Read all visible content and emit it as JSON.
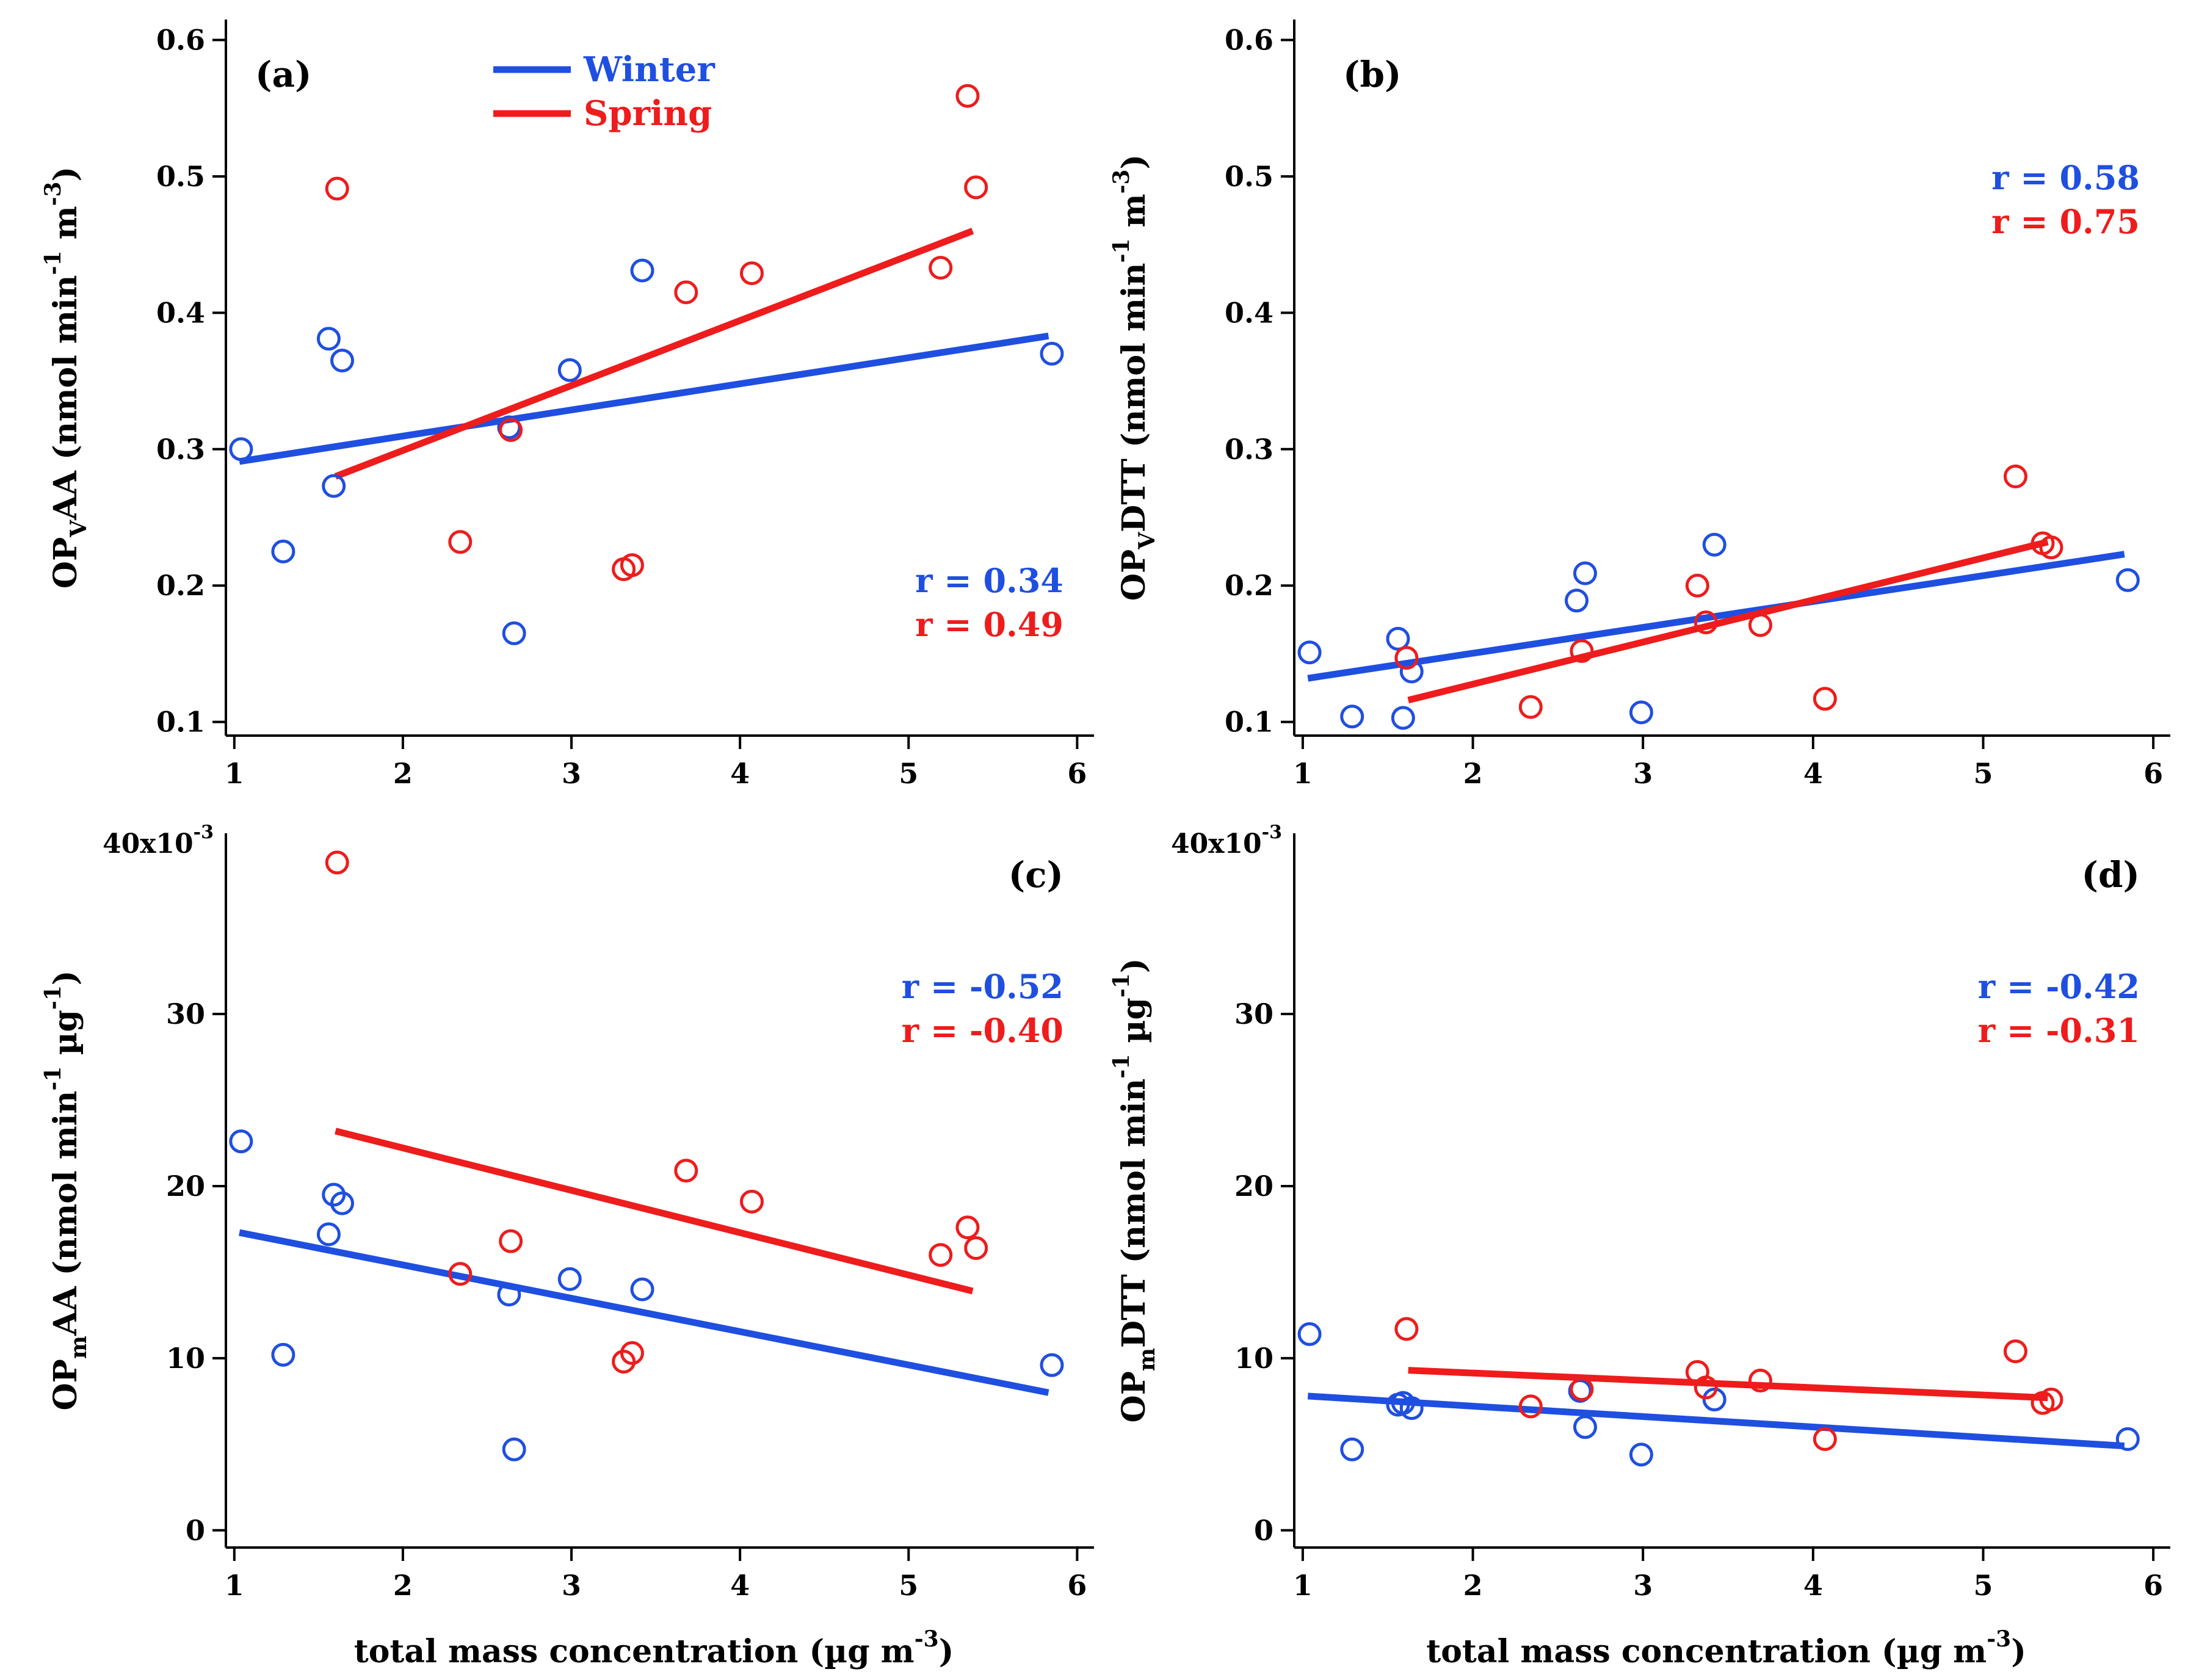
{
  "colors": {
    "winter": "#1f4fe0",
    "spring": "#ee1c1c",
    "axis": "#000000"
  },
  "chart_data": [
    {
      "type": "scatter",
      "panel": "(a)",
      "ylabel": {
        "main": "OP",
        "sub": "V",
        "rest": "AA (nmol min",
        "sup1": "-1",
        "mid": " m",
        "sup2": "-3",
        "end": ")"
      },
      "xlim": [
        0.95,
        6.1
      ],
      "ylim": [
        0.09,
        0.615
      ],
      "xticks": [
        1,
        2,
        3,
        4,
        5,
        6
      ],
      "xticklabels": [
        "1",
        "2",
        "3",
        "4",
        "5",
        "6"
      ],
      "yticks": [
        0.1,
        0.2,
        0.3,
        0.4,
        0.5,
        0.6
      ],
      "yticklabels": [
        "0.1",
        "0.2",
        "0.3",
        "0.4",
        "0.5",
        "0.6"
      ],
      "legend": [
        {
          "name": "Winter",
          "series": "winter"
        },
        {
          "name": "Spring",
          "series": "spring"
        }
      ],
      "r_labels": [
        {
          "text": "r = 0.34",
          "series": "winter"
        },
        {
          "text": "r = 0.49",
          "series": "spring"
        }
      ],
      "r_position": "bottom-right",
      "series": [
        {
          "name": "Winter",
          "key": "winter",
          "points": [
            [
              1.04,
              0.3
            ],
            [
              1.29,
              0.225
            ],
            [
              1.56,
              0.381
            ],
            [
              1.59,
              0.273
            ],
            [
              1.64,
              0.365
            ],
            [
              2.63,
              0.316
            ],
            [
              2.66,
              0.165
            ],
            [
              2.99,
              0.358
            ],
            [
              3.42,
              0.431
            ],
            [
              5.85,
              0.37
            ]
          ],
          "fit": [
            [
              1.03,
              0.291
            ],
            [
              5.83,
              0.383
            ]
          ]
        },
        {
          "name": "Spring",
          "key": "spring",
          "points": [
            [
              1.61,
              0.491
            ],
            [
              2.34,
              0.232
            ],
            [
              2.64,
              0.314
            ],
            [
              3.31,
              0.212
            ],
            [
              3.36,
              0.215
            ],
            [
              3.68,
              0.415
            ],
            [
              4.07,
              0.429
            ],
            [
              5.19,
              0.433
            ],
            [
              5.35,
              0.559
            ],
            [
              5.4,
              0.492
            ]
          ],
          "fit": [
            [
              1.6,
              0.28
            ],
            [
              5.38,
              0.46
            ]
          ]
        }
      ]
    },
    {
      "type": "scatter",
      "panel": "(b)",
      "ylabel": {
        "main": "OP",
        "sub": "V",
        "rest": "DTT (nmol min",
        "sup1": "-1",
        "mid": " m",
        "sup2": "-3",
        "end": ")"
      },
      "xlim": [
        0.95,
        6.1
      ],
      "ylim": [
        0.09,
        0.615
      ],
      "xticks": [
        1,
        2,
        3,
        4,
        5,
        6
      ],
      "xticklabels": [
        "1",
        "2",
        "3",
        "4",
        "5",
        "6"
      ],
      "yticks": [
        0.1,
        0.2,
        0.3,
        0.4,
        0.5,
        0.6
      ],
      "yticklabels": [
        "0.1",
        "0.2",
        "0.3",
        "0.4",
        "0.5",
        "0.6"
      ],
      "r_labels": [
        {
          "text": "r = 0.58",
          "series": "winter"
        },
        {
          "text": "r = 0.75",
          "series": "spring"
        }
      ],
      "r_position": "top-right",
      "series": [
        {
          "name": "Winter",
          "key": "winter",
          "points": [
            [
              1.04,
              0.151
            ],
            [
              1.29,
              0.104
            ],
            [
              1.56,
              0.161
            ],
            [
              1.59,
              0.103
            ],
            [
              1.64,
              0.137
            ],
            [
              2.61,
              0.189
            ],
            [
              2.66,
              0.209
            ],
            [
              2.99,
              0.107
            ],
            [
              3.42,
              0.23
            ],
            [
              5.85,
              0.204
            ]
          ],
          "fit": [
            [
              1.03,
              0.132
            ],
            [
              5.83,
              0.223
            ]
          ]
        },
        {
          "name": "Spring",
          "key": "spring",
          "points": [
            [
              1.61,
              0.147
            ],
            [
              2.34,
              0.111
            ],
            [
              2.64,
              0.152
            ],
            [
              3.32,
              0.2
            ],
            [
              3.37,
              0.173
            ],
            [
              3.69,
              0.171
            ],
            [
              4.07,
              0.117
            ],
            [
              5.19,
              0.28
            ],
            [
              5.35,
              0.231
            ],
            [
              5.4,
              0.228
            ]
          ],
          "fit": [
            [
              1.62,
              0.116
            ],
            [
              5.38,
              0.232
            ]
          ]
        }
      ]
    },
    {
      "type": "scatter",
      "panel": "(c)",
      "ylabel": {
        "main": "OP",
        "sub": "m",
        "rest": "AA (nmol min",
        "sup1": "-1",
        "mid": " µg",
        "sup2": "-1",
        "end": ")"
      },
      "xlabel": "total mass concentration (µg m",
      "xlabel_sup": "-3",
      "xlabel_end": ")",
      "xlim": [
        0.95,
        6.1
      ],
      "ylim": [
        -0.001,
        0.0405
      ],
      "sci": {
        "base": "40x10",
        "exp": "-3"
      },
      "xticks": [
        1,
        2,
        3,
        4,
        5,
        6
      ],
      "xticklabels": [
        "1",
        "2",
        "3",
        "4",
        "5",
        "6"
      ],
      "yticks": [
        0,
        0.01,
        0.02,
        0.03
      ],
      "yticklabels": [
        "0",
        "10",
        "20",
        "30"
      ],
      "r_labels": [
        {
          "text": "r = -0.52",
          "series": "winter"
        },
        {
          "text": "r = -0.40",
          "series": "spring"
        }
      ],
      "r_position": "top-right",
      "series": [
        {
          "name": "Winter",
          "key": "winter",
          "points": [
            [
              1.04,
              0.0226
            ],
            [
              1.29,
              0.0102
            ],
            [
              1.56,
              0.0172
            ],
            [
              1.59,
              0.0195
            ],
            [
              1.64,
              0.019
            ],
            [
              2.63,
              0.0137
            ],
            [
              2.66,
              0.0047
            ],
            [
              2.99,
              0.0146
            ],
            [
              3.42,
              0.014
            ],
            [
              5.85,
              0.0096
            ]
          ],
          "fit": [
            [
              1.03,
              0.0173
            ],
            [
              5.83,
              0.008
            ]
          ]
        },
        {
          "name": "Spring",
          "key": "spring",
          "points": [
            [
              1.61,
              0.0388
            ],
            [
              2.34,
              0.0149
            ],
            [
              2.64,
              0.0168
            ],
            [
              3.31,
              0.0098
            ],
            [
              3.36,
              0.0103
            ],
            [
              3.68,
              0.0209
            ],
            [
              4.07,
              0.0191
            ],
            [
              5.19,
              0.016
            ],
            [
              5.35,
              0.0176
            ],
            [
              5.4,
              0.0164
            ]
          ],
          "fit": [
            [
              1.6,
              0.0232
            ],
            [
              5.38,
              0.0139
            ]
          ]
        }
      ]
    },
    {
      "type": "scatter",
      "panel": "(d)",
      "ylabel": {
        "main": "OP",
        "sub": "m",
        "rest": "DTT (nmol min",
        "sup1": "-1",
        "mid": " µg",
        "sup2": "-1",
        "end": ")"
      },
      "xlabel": "total mass concentration (µg m",
      "xlabel_sup": "-3",
      "xlabel_end": ")",
      "xlim": [
        0.95,
        6.1
      ],
      "ylim": [
        -0.001,
        0.0405
      ],
      "sci": {
        "base": "40x10",
        "exp": "-3"
      },
      "xticks": [
        1,
        2,
        3,
        4,
        5,
        6
      ],
      "xticklabels": [
        "1",
        "2",
        "3",
        "4",
        "5",
        "6"
      ],
      "yticks": [
        0,
        0.01,
        0.02,
        0.03
      ],
      "yticklabels": [
        "0",
        "10",
        "20",
        "30"
      ],
      "r_labels": [
        {
          "text": "r = -0.42",
          "series": "winter"
        },
        {
          "text": "r = -0.31",
          "series": "spring"
        }
      ],
      "r_position": "top-right",
      "series": [
        {
          "name": "Winter",
          "key": "winter",
          "points": [
            [
              1.04,
              0.0114
            ],
            [
              1.29,
              0.0047
            ],
            [
              1.56,
              0.0073
            ],
            [
              1.59,
              0.0074
            ],
            [
              1.64,
              0.0071
            ],
            [
              2.63,
              0.0081
            ],
            [
              2.66,
              0.006
            ],
            [
              2.99,
              0.0044
            ],
            [
              3.42,
              0.0076
            ],
            [
              5.85,
              0.0053
            ]
          ],
          "fit": [
            [
              1.03,
              0.0078
            ],
            [
              5.83,
              0.0049
            ]
          ]
        },
        {
          "name": "Spring",
          "key": "spring",
          "points": [
            [
              1.61,
              0.0117
            ],
            [
              2.34,
              0.0072
            ],
            [
              2.64,
              0.0082
            ],
            [
              3.32,
              0.0092
            ],
            [
              3.37,
              0.0083
            ],
            [
              3.69,
              0.0087
            ],
            [
              4.07,
              0.0053
            ],
            [
              5.19,
              0.0104
            ],
            [
              5.35,
              0.0074
            ],
            [
              5.4,
              0.0076
            ]
          ],
          "fit": [
            [
              1.62,
              0.0093
            ],
            [
              5.38,
              0.0077
            ]
          ]
        }
      ]
    }
  ]
}
